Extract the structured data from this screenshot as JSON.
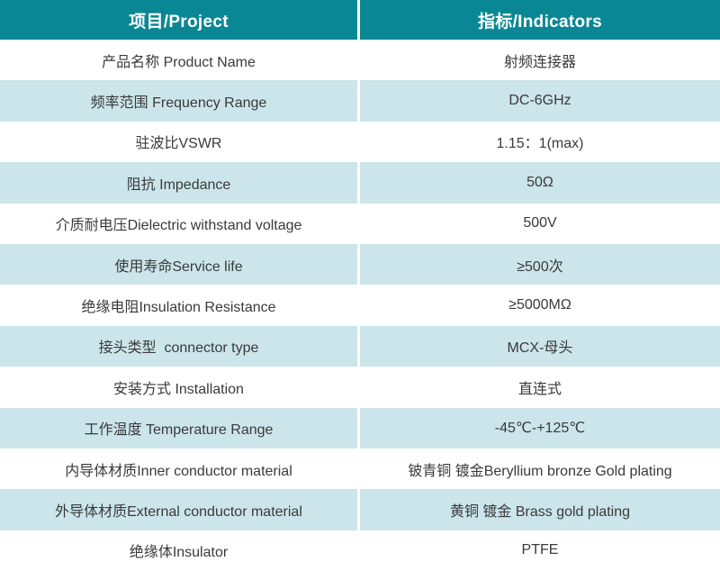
{
  "colors": {
    "header_bg": "#0a8794",
    "header_text": "#ffffff",
    "alt_row_bg": "#cbe5ea",
    "text": "#3a3a3a",
    "divider": "#ffffff",
    "row_bg": "#ffffff"
  },
  "table": {
    "header": {
      "project": "项目/Project",
      "indicators": "指标/Indicators"
    },
    "rows": [
      {
        "project": "产品名称 Product Name",
        "indicator": "射频连接器"
      },
      {
        "project": "频率范围 Frequency Range",
        "indicator": "DC-6GHz"
      },
      {
        "project": "驻波比VSWR",
        "indicator": "1.15：1(max)"
      },
      {
        "project": "阻抗 Impedance",
        "indicator": "50Ω"
      },
      {
        "project": "介质耐电压Dielectric withstand voltage",
        "indicator": "500V"
      },
      {
        "project": "使用寿命Service life",
        "indicator": "≥500次"
      },
      {
        "project": "绝缘电阻Insulation Resistance",
        "indicator": "≥5000MΩ"
      },
      {
        "project": "接头类型  connector type",
        "indicator": "MCX-母头"
      },
      {
        "project": "安装方式 Installation",
        "indicator": "直连式"
      },
      {
        "project": "工作温度 Temperature Range",
        "indicator": "-45℃-+125℃"
      },
      {
        "project": "内导体材质Inner conductor material",
        "indicator": "铍青铜 镀金Beryllium bronze Gold plating"
      },
      {
        "project": "外导体材质External conductor material",
        "indicator": "黄铜 镀金 Brass gold plating"
      },
      {
        "project": "绝缘体Insulator",
        "indicator": "PTFE"
      }
    ]
  }
}
